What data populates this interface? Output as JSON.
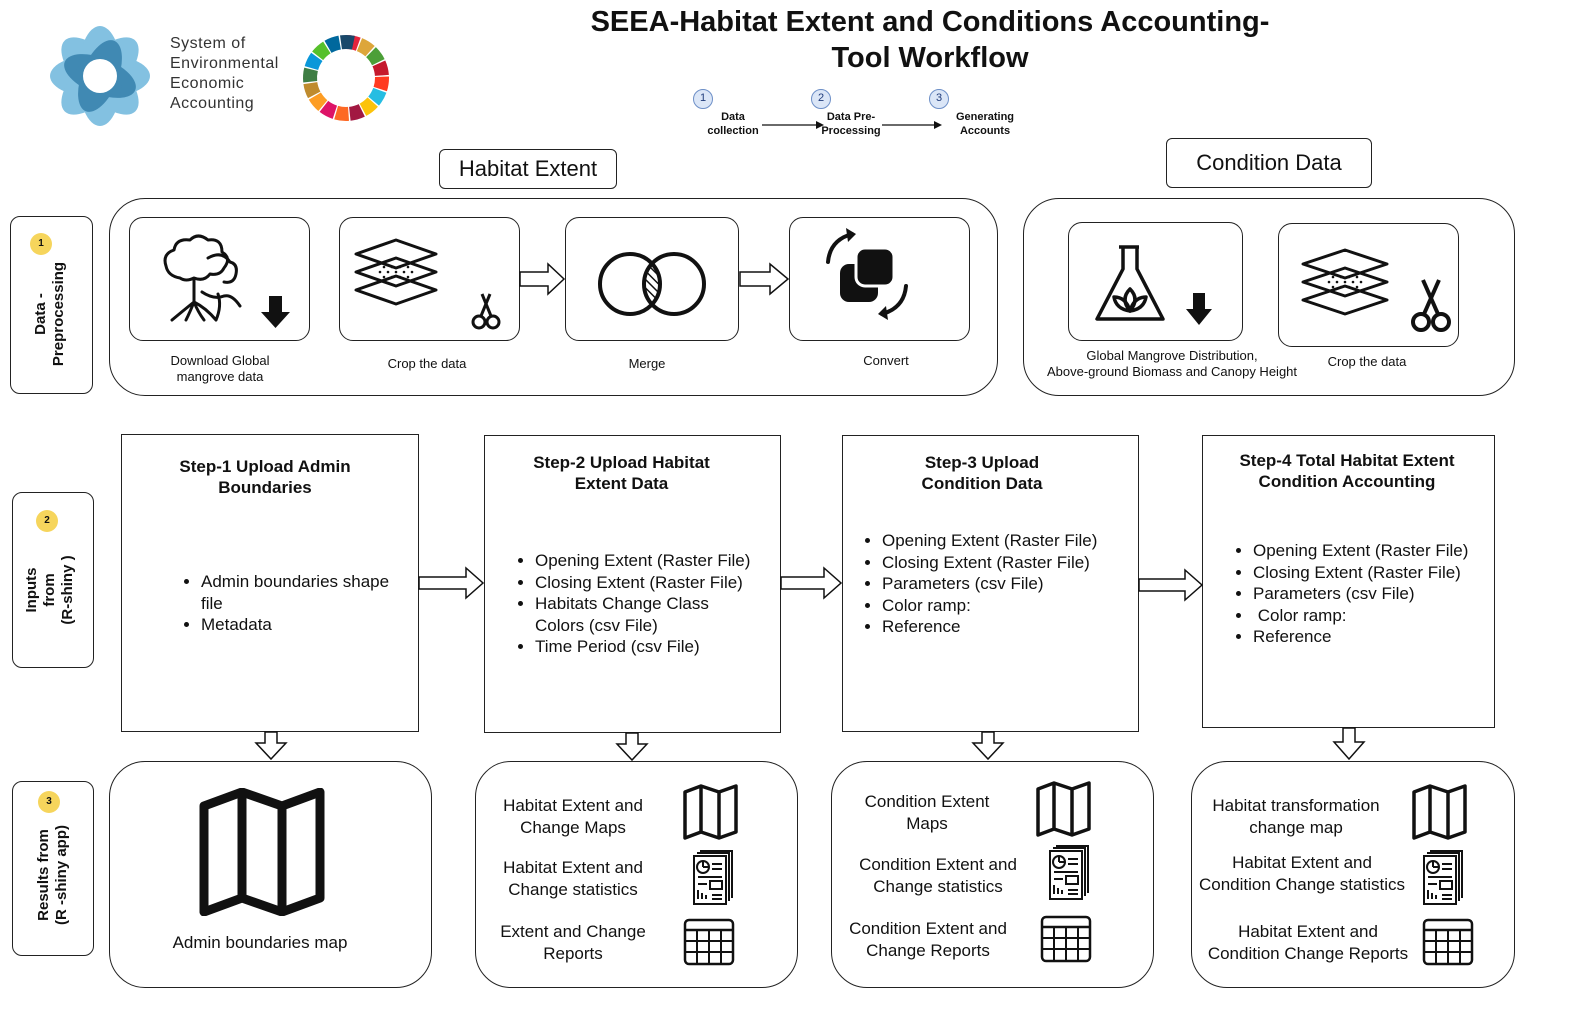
{
  "title": "SEEA-Habitat Extent and Conditions Accounting-\nTool Workflow",
  "logo": {
    "text": "System of\nEnvironmental\nEconomic\nAccounting"
  },
  "workflow": [
    {
      "num": "1",
      "label": "Data\ncollection"
    },
    {
      "num": "2",
      "label": "Data Pre-\nProcessing"
    },
    {
      "num": "3",
      "label": "Generating\nAccounts"
    }
  ],
  "rows": [
    {
      "num": "1",
      "label": "Data -\nPreprocessing"
    },
    {
      "num": "2",
      "label": "Inputs\nfrom\n(R-shiny )"
    },
    {
      "num": "3",
      "label": "Results from\n(R -shiny app)"
    }
  ],
  "habitat_extent": {
    "title": "Habitat Extent",
    "items": [
      {
        "label": "Download Global\nmangrove data",
        "icon": "mangrove-download-icon"
      },
      {
        "label": "Crop the data",
        "icon": "layers-scissors-icon"
      },
      {
        "label": "Merge",
        "icon": "merge-circles-icon"
      },
      {
        "label": "Convert",
        "icon": "convert-icon"
      }
    ]
  },
  "condition_data": {
    "title": "Condition Data",
    "items": [
      {
        "label": "Global Mangrove Distribution,\nAbove-ground Biomass and Canopy Height",
        "icon": "flask-download-icon"
      },
      {
        "label": "Crop the data",
        "icon": "layers-scissors-icon"
      }
    ]
  },
  "steps": [
    {
      "title": "Step-1 Upload Admin\nBoundaries",
      "bullets": [
        "Admin boundaries shape\nfile",
        "Metadata"
      ]
    },
    {
      "title": "Step-2 Upload Habitat\nExtent Data",
      "bullets": [
        "Opening Extent (Raster File)",
        "Closing Extent  (Raster File)",
        "Habitats Change Class\nColors (csv File)",
        "Time Period (csv File)"
      ]
    },
    {
      "title": "Step-3 Upload\nCondition Data",
      "bullets": [
        "Opening Extent (Raster File)",
        "Closing Extent (Raster File)",
        "Parameters  (csv File)",
        "Color ramp:",
        "Reference"
      ]
    },
    {
      "title": "Step-4 Total Habitat Extent\nCondition Accounting",
      "bullets": [
        "Opening Extent (Raster File)",
        "Closing Extent (Raster File)",
        "Parameters  (csv File)",
        " Color ramp:",
        "Reference"
      ]
    }
  ],
  "results": [
    {
      "items": [
        {
          "label": "Admin boundaries map",
          "icon": "map-icon"
        }
      ]
    },
    {
      "items": [
        {
          "label": "Habitat Extent and\nChange Maps",
          "icon": "map-icon"
        },
        {
          "label": "Habitat Extent and\nChange statistics",
          "icon": "statistics-report-icon"
        },
        {
          "label": "Extent and Change\nReports",
          "icon": "table-icon"
        }
      ]
    },
    {
      "items": [
        {
          "label": "Condition Extent\nMaps",
          "icon": "map-icon"
        },
        {
          "label": "Condition Extent and\nChange statistics",
          "icon": "statistics-report-icon"
        },
        {
          "label": "Condition Extent and\nChange Reports",
          "icon": "table-icon"
        }
      ]
    },
    {
      "items": [
        {
          "label": "Habitat transformation\nchange  map",
          "icon": "map-icon"
        },
        {
          "label": "Habitat Extent and\nCondition Change statistics",
          "icon": "statistics-report-icon"
        },
        {
          "label": "Habitat Extent and\nCondition Change  Reports",
          "icon": "table-icon"
        }
      ]
    }
  ]
}
